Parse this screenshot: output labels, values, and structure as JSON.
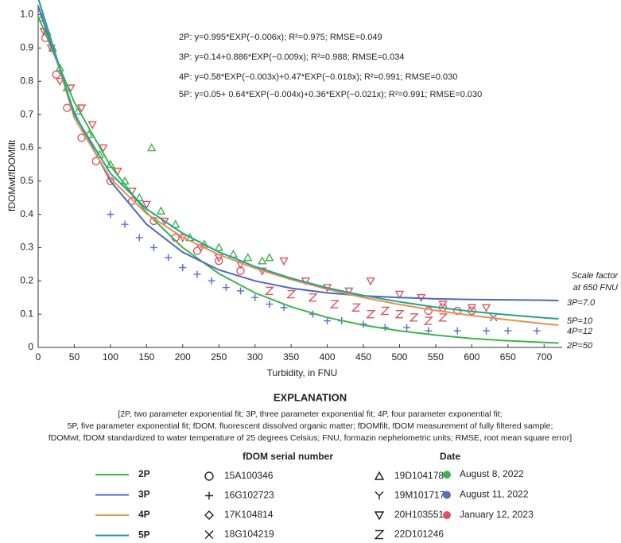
{
  "chart_data": {
    "type": "scatter",
    "x_label": "Turbidity, in FNU",
    "y_label": "fDOMwt/fDOMfilt",
    "xlim": [
      0,
      725
    ],
    "ylim": [
      0,
      1.03
    ],
    "xticks": [
      0,
      50,
      100,
      150,
      200,
      250,
      300,
      350,
      400,
      450,
      500,
      550,
      600,
      650,
      700
    ],
    "yticks": [
      0,
      0.1,
      0.2,
      0.3,
      0.4,
      0.5,
      0.6,
      0.7,
      0.8,
      0.9,
      {
        "value": 1,
        "label": "1.0"
      }
    ],
    "grid": false,
    "fit_x": [
      0,
      50,
      100,
      150,
      200,
      250,
      300,
      350,
      400,
      450,
      500,
      550,
      600,
      650,
      700,
      720
    ],
    "fits": [
      {
        "name": "2P",
        "color": "#3cb54a",
        "equation": "2P: y=0.995*EXP(−0.006x); R²=0.975; RMSE=0.049",
        "scale_label": "2P=50",
        "values": [
          0.995,
          0.737,
          0.546,
          0.405,
          0.3,
          0.222,
          0.164,
          0.122,
          0.09,
          0.067,
          0.05,
          0.037,
          0.027,
          0.02,
          0.015,
          0.013
        ]
      },
      {
        "name": "3P",
        "color": "#4f68c0",
        "equation": "3P: y=0.14+0.886*EXP(−0.009x); R²=0.988; RMSE=0.034",
        "scale_label": "3P=7.0",
        "values": [
          1.026,
          0.705,
          0.5,
          0.37,
          0.286,
          0.233,
          0.2,
          0.178,
          0.164,
          0.155,
          0.15,
          0.146,
          0.144,
          0.143,
          0.142,
          0.141
        ]
      },
      {
        "name": "4P",
        "color": "#e8914a",
        "equation": "4P: y=0.58*EXP(−0.003x)+0.47*EXP(−0.018x); R²=0.991; RMSE=0.030",
        "scale_label": "4P=12",
        "values": [
          1.05,
          0.69,
          0.508,
          0.402,
          0.331,
          0.279,
          0.238,
          0.204,
          0.175,
          0.15,
          0.129,
          0.111,
          0.096,
          0.083,
          0.071,
          0.067
        ]
      },
      {
        "name": "5P",
        "color": "#1fa39a",
        "equation": "5P: y=0.05+ 0.64*EXP(−0.004x)+0.36*EXP(−0.021x); R²=0.991; RMSE=0.030",
        "scale_label": "5P=10",
        "values": [
          1.05,
          0.7,
          0.523,
          0.416,
          0.343,
          0.287,
          0.243,
          0.208,
          0.179,
          0.156,
          0.137,
          0.121,
          0.108,
          0.098,
          0.089,
          0.086
        ]
      }
    ],
    "series": [
      {
        "symbol": "triangle",
        "color": "#3cb54a",
        "x": [
          5,
          12,
          20,
          30,
          40,
          55,
          70,
          85,
          100,
          120,
          140,
          157,
          170,
          190,
          210,
          230,
          250,
          270,
          290,
          310,
          320
        ],
        "values": [
          0.99,
          0.95,
          0.9,
          0.84,
          0.78,
          0.71,
          0.64,
          0.58,
          0.55,
          0.5,
          0.45,
          0.6,
          0.41,
          0.37,
          0.33,
          0.31,
          0.3,
          0.28,
          0.27,
          0.26,
          0.27
        ]
      },
      {
        "symbol": "triangle-down",
        "color": "#e0525f",
        "x": [
          8,
          18,
          30,
          45,
          60,
          75,
          90,
          110,
          130,
          150,
          175,
          200,
          225,
          250,
          280,
          310,
          340,
          370,
          400,
          430,
          460,
          500,
          530,
          560,
          600,
          620
        ],
        "values": [
          0.95,
          0.9,
          0.8,
          0.78,
          0.72,
          0.67,
          0.6,
          0.53,
          0.47,
          0.43,
          0.38,
          0.33,
          0.3,
          0.27,
          0.25,
          0.23,
          0.26,
          0.2,
          0.18,
          0.17,
          0.2,
          0.16,
          0.15,
          0.13,
          0.12,
          0.12
        ]
      },
      {
        "symbol": "z",
        "color": "#e0525f",
        "x": [
          320,
          350,
          380,
          410,
          440,
          460,
          480,
          500,
          520,
          540,
          560
        ],
        "values": [
          0.17,
          0.16,
          0.15,
          0.13,
          0.12,
          0.1,
          0.11,
          0.1,
          0.09,
          0.08,
          0.09
        ]
      },
      {
        "symbol": "circle",
        "color": "#e0525f",
        "x": [
          10,
          25,
          40,
          60,
          80,
          100,
          130,
          160,
          190,
          220,
          250,
          280,
          540,
          560,
          580,
          600
        ],
        "values": [
          0.93,
          0.82,
          0.72,
          0.63,
          0.56,
          0.5,
          0.44,
          0.38,
          0.33,
          0.29,
          0.26,
          0.23,
          0.11,
          0.12,
          0.11,
          0.11
        ]
      },
      {
        "symbol": "plus",
        "color": "#5470c6",
        "x": [
          100,
          120,
          140,
          160,
          180,
          200,
          220,
          240,
          260,
          280,
          300,
          320,
          340,
          380,
          400,
          420,
          450,
          480,
          510,
          540,
          580,
          620,
          650,
          690
        ],
        "values": [
          0.4,
          0.37,
          0.33,
          0.3,
          0.27,
          0.24,
          0.22,
          0.2,
          0.18,
          0.17,
          0.15,
          0.13,
          0.12,
          0.1,
          0.08,
          0.08,
          0.07,
          0.06,
          0.06,
          0.05,
          0.05,
          0.05,
          0.05,
          0.05
        ]
      },
      {
        "symbol": "x",
        "color": "#5470c6",
        "x": [
          630
        ],
        "values": [
          0.09
        ]
      }
    ],
    "scale_title": [
      "Scale factor",
      "at 650 FNU"
    ],
    "explanation": {
      "title": "EXPLANATION",
      "notes": [
        "[2P, two parameter exponential fit; 3P, three parameter exponential fit; 4P, four parameter exponential fit;",
        "5P, five parameter exponential fit; fDOM, fluorescent dissolved organic matter; fDOMfilt, fDOM measurement of fully filtered sample;",
        "fDOMwt, fDOM standardized to water temperature of 25 degrees Celsius; FNU, formazin nephelometric units; RMSE, root mean square error]"
      ],
      "serial_title": "fDOM serial number",
      "serials": [
        {
          "label": "15A100346",
          "symbol": "circle"
        },
        {
          "label": "16G102723",
          "symbol": "plus"
        },
        {
          "label": "17K104814",
          "symbol": "diamond"
        },
        {
          "label": "18G104219",
          "symbol": "x"
        },
        {
          "label": "19D104178",
          "symbol": "triangle"
        },
        {
          "label": "19M101717",
          "symbol": "y"
        },
        {
          "label": "20H103551",
          "symbol": "triangle-down"
        },
        {
          "label": "22D101246",
          "symbol": "z"
        }
      ],
      "date_title": "Date",
      "dates": [
        {
          "label": "August 8, 2022",
          "color": "#3cb54a"
        },
        {
          "label": "August 11, 2022",
          "color": "#5470c6"
        },
        {
          "label": "January 12, 2023",
          "color": "#e0525f"
        }
      ]
    }
  }
}
